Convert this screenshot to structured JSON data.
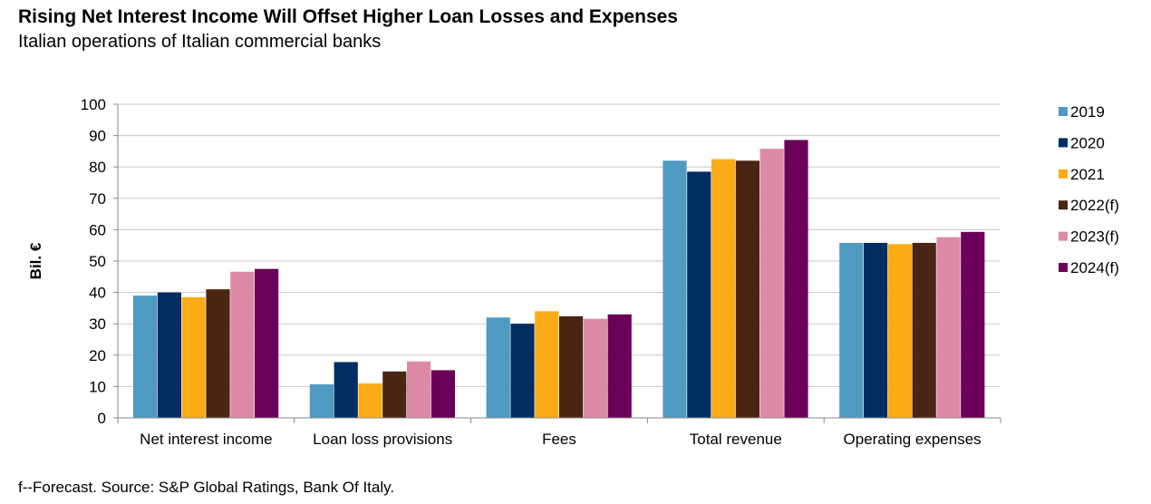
{
  "header": {
    "title": "Rising Net Interest Income Will Offset Higher Loan Losses and Expenses",
    "subtitle": "Italian operations of Italian commercial banks"
  },
  "footer": {
    "note": "f--Forecast. Source: S&P Global Ratings, Bank Of Italy."
  },
  "chart_data": {
    "type": "bar",
    "title": "Rising Net Interest Income Will Offset Higher Loan Losses and Expenses",
    "subtitle": "Italian operations of Italian commercial banks",
    "xlabel": "",
    "ylabel": "Bil. €",
    "ylim": [
      0,
      100
    ],
    "yticks": [
      0,
      10,
      20,
      30,
      40,
      50,
      60,
      70,
      80,
      90,
      100
    ],
    "grid": true,
    "legend_position": "right",
    "categories": [
      "Net interest income",
      "Loan loss provisions",
      "Fees",
      "Total revenue",
      "Operating expenses"
    ],
    "series": [
      {
        "name": "2019",
        "color": "#4f9ac3",
        "values": [
          39,
          10.7,
          32,
          82,
          55.8
        ]
      },
      {
        "name": "2020",
        "color": "#002d62",
        "values": [
          40,
          17.8,
          30,
          78.5,
          55.8
        ]
      },
      {
        "name": "2021",
        "color": "#fbac16",
        "values": [
          38.5,
          11,
          34,
          82.5,
          55.4
        ]
      },
      {
        "name": "2022(f)",
        "color": "#4a2513",
        "values": [
          41,
          14.8,
          32.4,
          82,
          55.8
        ]
      },
      {
        "name": "2023(f)",
        "color": "#dd8aa7",
        "values": [
          46.6,
          18,
          31.6,
          85.8,
          57.6
        ]
      },
      {
        "name": "2024(f)",
        "color": "#6a0057",
        "values": [
          47.5,
          15.2,
          33,
          88.6,
          59.3
        ]
      }
    ]
  }
}
